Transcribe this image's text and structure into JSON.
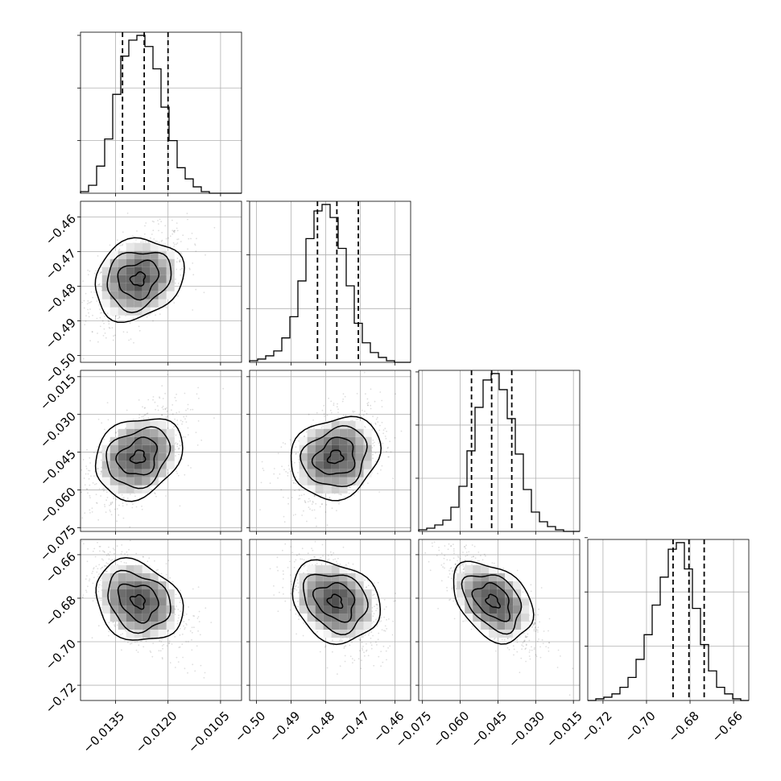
{
  "chart_data": {
    "type": "corner",
    "grid": true,
    "params": [
      {
        "range": [
          -0.0145,
          -0.0099
        ],
        "ticks": [
          -0.0135,
          -0.012,
          -0.0105
        ],
        "tick_labels": [
          "−0.0135",
          "−0.0120",
          "−0.0105"
        ],
        "quantiles": [
          -0.0133,
          -0.01268,
          -0.012
        ],
        "hist": [
          1,
          5,
          17,
          34,
          62,
          86,
          96,
          99,
          92,
          78,
          54,
          33,
          16,
          9,
          4,
          1,
          0,
          0,
          0,
          0
        ]
      },
      {
        "range": [
          -0.502,
          -0.4555
        ],
        "ticks": [
          -0.5,
          -0.49,
          -0.48,
          -0.47,
          -0.46
        ],
        "tick_labels": [
          "−0.50",
          "−0.49",
          "−0.48",
          "−0.47",
          "−0.46"
        ],
        "quantiles": [
          -0.4824,
          -0.4768,
          -0.4706
        ],
        "hist": [
          1,
          2,
          4,
          7,
          15,
          28,
          50,
          76,
          93,
          97,
          89,
          70,
          47,
          24,
          12,
          6,
          3,
          1,
          0,
          0
        ]
      },
      {
        "range": [
          -0.0765,
          -0.0125
        ],
        "ticks": [
          -0.075,
          -0.06,
          -0.045,
          -0.03,
          -0.015
        ],
        "tick_labels": [
          "−0.075",
          "−0.060",
          "−0.045",
          "−0.030",
          "−0.015"
        ],
        "quantiles": [
          -0.0555,
          -0.0475,
          -0.0395
        ],
        "hist": [
          1,
          2,
          4,
          7,
          15,
          28,
          50,
          77,
          94,
          98,
          88,
          70,
          48,
          26,
          12,
          6,
          3,
          1,
          0,
          0
        ]
      },
      {
        "range": [
          -0.727,
          -0.653
        ],
        "ticks": [
          -0.72,
          -0.7,
          -0.68,
          -0.66
        ],
        "tick_labels": [
          "−0.72",
          "−0.70",
          "−0.68",
          "−0.66"
        ],
        "quantiles": [
          -0.6878,
          -0.6805,
          -0.6735
        ],
        "hist": [
          0,
          1,
          2,
          4,
          8,
          14,
          25,
          40,
          58,
          75,
          92,
          96,
          80,
          56,
          34,
          18,
          8,
          4,
          1,
          0
        ]
      }
    ],
    "pair_centers": [
      {
        "row": 1,
        "col": 0,
        "x": -0.01285,
        "y": -0.478,
        "rho": 0.45
      },
      {
        "row": 2,
        "col": 0,
        "x": -0.01285,
        "y": -0.047,
        "rho": 0.5
      },
      {
        "row": 2,
        "col": 1,
        "x": -0.4772,
        "y": -0.047,
        "rho": 0.42
      },
      {
        "row": 3,
        "col": 0,
        "x": -0.01285,
        "y": -0.6815,
        "rho": -0.5
      },
      {
        "row": 3,
        "col": 1,
        "x": -0.4772,
        "y": -0.6815,
        "rho": -0.48
      },
      {
        "row": 3,
        "col": 2,
        "x": -0.047,
        "y": -0.6815,
        "rho": -0.72
      }
    ]
  }
}
